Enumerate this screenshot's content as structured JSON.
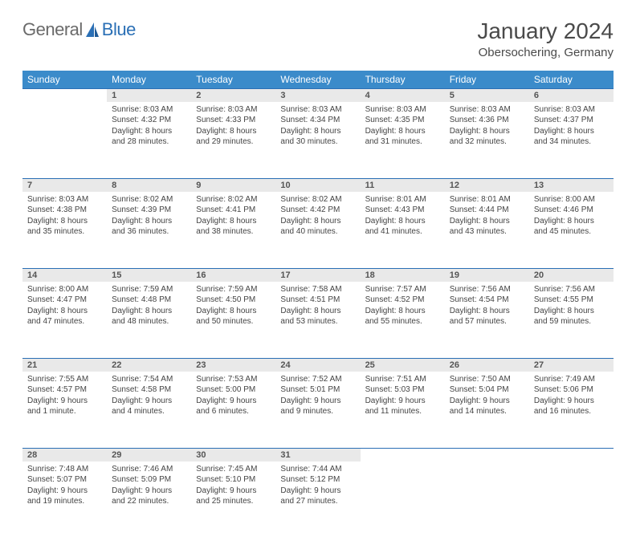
{
  "logo": {
    "general": "General",
    "blue": "Blue"
  },
  "title": "January 2024",
  "location": "Obersochering, Germany",
  "colors": {
    "header_bg": "#3b8bca",
    "header_text": "#ffffff",
    "rule": "#2a6fb5",
    "daynum_bg": "#e9e9e9",
    "body_text": "#444444",
    "logo_gray": "#6a6a6a",
    "logo_blue": "#2a6fb5"
  },
  "day_headers": [
    "Sunday",
    "Monday",
    "Tuesday",
    "Wednesday",
    "Thursday",
    "Friday",
    "Saturday"
  ],
  "weeks": [
    {
      "nums": [
        "",
        "1",
        "2",
        "3",
        "4",
        "5",
        "6"
      ],
      "cells": [
        {
          "blank": true
        },
        {
          "sunrise": "Sunrise: 8:03 AM",
          "sunset": "Sunset: 4:32 PM",
          "d1": "Daylight: 8 hours",
          "d2": "and 28 minutes."
        },
        {
          "sunrise": "Sunrise: 8:03 AM",
          "sunset": "Sunset: 4:33 PM",
          "d1": "Daylight: 8 hours",
          "d2": "and 29 minutes."
        },
        {
          "sunrise": "Sunrise: 8:03 AM",
          "sunset": "Sunset: 4:34 PM",
          "d1": "Daylight: 8 hours",
          "d2": "and 30 minutes."
        },
        {
          "sunrise": "Sunrise: 8:03 AM",
          "sunset": "Sunset: 4:35 PM",
          "d1": "Daylight: 8 hours",
          "d2": "and 31 minutes."
        },
        {
          "sunrise": "Sunrise: 8:03 AM",
          "sunset": "Sunset: 4:36 PM",
          "d1": "Daylight: 8 hours",
          "d2": "and 32 minutes."
        },
        {
          "sunrise": "Sunrise: 8:03 AM",
          "sunset": "Sunset: 4:37 PM",
          "d1": "Daylight: 8 hours",
          "d2": "and 34 minutes."
        }
      ]
    },
    {
      "nums": [
        "7",
        "8",
        "9",
        "10",
        "11",
        "12",
        "13"
      ],
      "cells": [
        {
          "sunrise": "Sunrise: 8:03 AM",
          "sunset": "Sunset: 4:38 PM",
          "d1": "Daylight: 8 hours",
          "d2": "and 35 minutes."
        },
        {
          "sunrise": "Sunrise: 8:02 AM",
          "sunset": "Sunset: 4:39 PM",
          "d1": "Daylight: 8 hours",
          "d2": "and 36 minutes."
        },
        {
          "sunrise": "Sunrise: 8:02 AM",
          "sunset": "Sunset: 4:41 PM",
          "d1": "Daylight: 8 hours",
          "d2": "and 38 minutes."
        },
        {
          "sunrise": "Sunrise: 8:02 AM",
          "sunset": "Sunset: 4:42 PM",
          "d1": "Daylight: 8 hours",
          "d2": "and 40 minutes."
        },
        {
          "sunrise": "Sunrise: 8:01 AM",
          "sunset": "Sunset: 4:43 PM",
          "d1": "Daylight: 8 hours",
          "d2": "and 41 minutes."
        },
        {
          "sunrise": "Sunrise: 8:01 AM",
          "sunset": "Sunset: 4:44 PM",
          "d1": "Daylight: 8 hours",
          "d2": "and 43 minutes."
        },
        {
          "sunrise": "Sunrise: 8:00 AM",
          "sunset": "Sunset: 4:46 PM",
          "d1": "Daylight: 8 hours",
          "d2": "and 45 minutes."
        }
      ]
    },
    {
      "nums": [
        "14",
        "15",
        "16",
        "17",
        "18",
        "19",
        "20"
      ],
      "cells": [
        {
          "sunrise": "Sunrise: 8:00 AM",
          "sunset": "Sunset: 4:47 PM",
          "d1": "Daylight: 8 hours",
          "d2": "and 47 minutes."
        },
        {
          "sunrise": "Sunrise: 7:59 AM",
          "sunset": "Sunset: 4:48 PM",
          "d1": "Daylight: 8 hours",
          "d2": "and 48 minutes."
        },
        {
          "sunrise": "Sunrise: 7:59 AM",
          "sunset": "Sunset: 4:50 PM",
          "d1": "Daylight: 8 hours",
          "d2": "and 50 minutes."
        },
        {
          "sunrise": "Sunrise: 7:58 AM",
          "sunset": "Sunset: 4:51 PM",
          "d1": "Daylight: 8 hours",
          "d2": "and 53 minutes."
        },
        {
          "sunrise": "Sunrise: 7:57 AM",
          "sunset": "Sunset: 4:52 PM",
          "d1": "Daylight: 8 hours",
          "d2": "and 55 minutes."
        },
        {
          "sunrise": "Sunrise: 7:56 AM",
          "sunset": "Sunset: 4:54 PM",
          "d1": "Daylight: 8 hours",
          "d2": "and 57 minutes."
        },
        {
          "sunrise": "Sunrise: 7:56 AM",
          "sunset": "Sunset: 4:55 PM",
          "d1": "Daylight: 8 hours",
          "d2": "and 59 minutes."
        }
      ]
    },
    {
      "nums": [
        "21",
        "22",
        "23",
        "24",
        "25",
        "26",
        "27"
      ],
      "cells": [
        {
          "sunrise": "Sunrise: 7:55 AM",
          "sunset": "Sunset: 4:57 PM",
          "d1": "Daylight: 9 hours",
          "d2": "and 1 minute."
        },
        {
          "sunrise": "Sunrise: 7:54 AM",
          "sunset": "Sunset: 4:58 PM",
          "d1": "Daylight: 9 hours",
          "d2": "and 4 minutes."
        },
        {
          "sunrise": "Sunrise: 7:53 AM",
          "sunset": "Sunset: 5:00 PM",
          "d1": "Daylight: 9 hours",
          "d2": "and 6 minutes."
        },
        {
          "sunrise": "Sunrise: 7:52 AM",
          "sunset": "Sunset: 5:01 PM",
          "d1": "Daylight: 9 hours",
          "d2": "and 9 minutes."
        },
        {
          "sunrise": "Sunrise: 7:51 AM",
          "sunset": "Sunset: 5:03 PM",
          "d1": "Daylight: 9 hours",
          "d2": "and 11 minutes."
        },
        {
          "sunrise": "Sunrise: 7:50 AM",
          "sunset": "Sunset: 5:04 PM",
          "d1": "Daylight: 9 hours",
          "d2": "and 14 minutes."
        },
        {
          "sunrise": "Sunrise: 7:49 AM",
          "sunset": "Sunset: 5:06 PM",
          "d1": "Daylight: 9 hours",
          "d2": "and 16 minutes."
        }
      ]
    },
    {
      "nums": [
        "28",
        "29",
        "30",
        "31",
        "",
        "",
        ""
      ],
      "cells": [
        {
          "sunrise": "Sunrise: 7:48 AM",
          "sunset": "Sunset: 5:07 PM",
          "d1": "Daylight: 9 hours",
          "d2": "and 19 minutes."
        },
        {
          "sunrise": "Sunrise: 7:46 AM",
          "sunset": "Sunset: 5:09 PM",
          "d1": "Daylight: 9 hours",
          "d2": "and 22 minutes."
        },
        {
          "sunrise": "Sunrise: 7:45 AM",
          "sunset": "Sunset: 5:10 PM",
          "d1": "Daylight: 9 hours",
          "d2": "and 25 minutes."
        },
        {
          "sunrise": "Sunrise: 7:44 AM",
          "sunset": "Sunset: 5:12 PM",
          "d1": "Daylight: 9 hours",
          "d2": "and 27 minutes."
        },
        {
          "blank": true
        },
        {
          "blank": true
        },
        {
          "blank": true
        }
      ]
    }
  ]
}
